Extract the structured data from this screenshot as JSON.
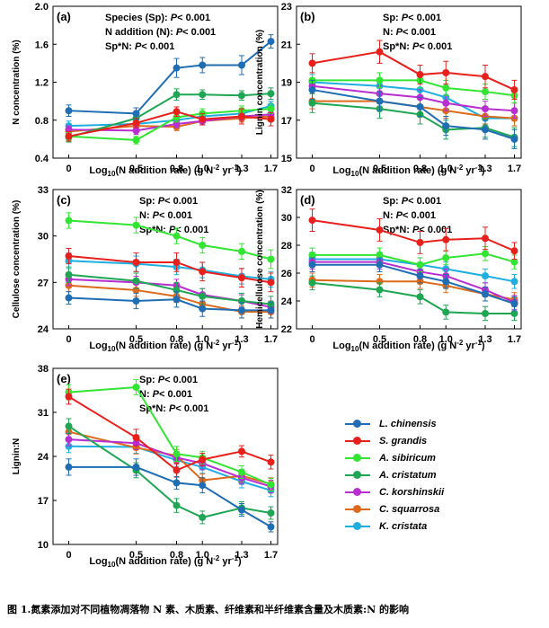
{
  "species": [
    {
      "name": "L. chinensis",
      "color": "#1f6db3"
    },
    {
      "name": "S. grandis",
      "color": "#e8201c"
    },
    {
      "name": "A. sibiricum",
      "color": "#33e533"
    },
    {
      "name": "A. cristatum",
      "color": "#1fa653"
    },
    {
      "name": "C. korshinskii",
      "color": "#b82ed0"
    },
    {
      "name": "C. squarrosa",
      "color": "#dc6a1a"
    },
    {
      "name": "K. cristata",
      "color": "#1faee0"
    }
  ],
  "caption": "图 1.氮素添加对不同植物凋落物 N 素、木质素、纤维素和半纤维素含量及木质素:N 的影响",
  "chart_data": [
    {
      "type": "line",
      "panel": "(a)",
      "ylabel": "N concentration (%)",
      "xlabel": "Log10(N addition rate) (g N-2 yr-1)",
      "x": [
        0,
        0.5,
        0.8,
        1.0,
        1.3,
        1.7
      ],
      "xticks": [
        "0",
        "0.5",
        "0.8",
        "1.0",
        "1.3",
        "1.7"
      ],
      "ylim": [
        0.4,
        2.0
      ],
      "yticks": [
        "0.4",
        "0.8",
        "1.2",
        "1.6",
        "2.0"
      ],
      "annotations": [
        "Species (Sp): P< 0.001",
        "N addition (N): P< 0.001",
        "Sp*N: P< 0.001"
      ],
      "series": [
        {
          "name": "L. chinensis",
          "values": [
            0.9,
            0.87,
            1.35,
            1.38,
            1.38,
            1.63
          ],
          "err": [
            0.06,
            0.06,
            0.1,
            0.08,
            0.1,
            0.07
          ]
        },
        {
          "name": "S. grandis",
          "values": [
            0.63,
            0.77,
            0.89,
            0.81,
            0.84,
            0.81
          ],
          "err": [
            0.05,
            0.05,
            0.05,
            0.06,
            0.08,
            0.07
          ]
        },
        {
          "name": "A. sibiricum",
          "values": [
            0.63,
            0.59,
            0.83,
            0.87,
            0.9,
            0.92
          ],
          "err": [
            0.04,
            0.04,
            0.05,
            0.05,
            0.05,
            0.05
          ]
        },
        {
          "name": "A. cristatum",
          "values": [
            0.62,
            0.82,
            1.07,
            1.07,
            1.06,
            1.08
          ],
          "err": [
            0.05,
            0.05,
            0.06,
            0.05,
            0.05,
            0.06
          ]
        },
        {
          "name": "C. korshinskii",
          "values": [
            0.7,
            0.69,
            0.76,
            0.79,
            0.84,
            0.86
          ],
          "err": [
            0.04,
            0.04,
            0.04,
            0.04,
            0.04,
            0.04
          ]
        },
        {
          "name": "C. squarrosa",
          "values": [
            0.68,
            0.74,
            0.73,
            0.79,
            0.82,
            0.84
          ],
          "err": [
            0.04,
            0.04,
            0.04,
            0.04,
            0.04,
            0.04
          ]
        },
        {
          "name": "K. cristata",
          "values": [
            0.74,
            0.76,
            0.8,
            0.84,
            0.87,
            0.95
          ],
          "err": [
            0.05,
            0.05,
            0.05,
            0.05,
            0.05,
            0.05
          ]
        }
      ]
    },
    {
      "type": "line",
      "panel": "(b)",
      "ylabel": "Lignin concentration (%)",
      "xlabel": "Log10(N addition rate) (g N-2 yr-1)",
      "x": [
        0,
        0.5,
        0.8,
        1.0,
        1.3,
        1.7
      ],
      "xticks": [
        "0",
        "0.5",
        "0.8",
        "1.0",
        "1.3",
        "1.7"
      ],
      "ylim": [
        15,
        23
      ],
      "yticks": [
        "15",
        "17",
        "19",
        "21",
        "23"
      ],
      "annotations": [
        "Sp: P< 0.001",
        "N: P< 0.001",
        "Sp*N: P< 0.001"
      ],
      "series": [
        {
          "name": "L. chinensis",
          "values": [
            18.6,
            18.0,
            17.7,
            16.7,
            16.5,
            16.0
          ],
          "err": [
            0.5,
            0.5,
            0.5,
            0.5,
            0.5,
            0.5
          ]
        },
        {
          "name": "S. grandis",
          "values": [
            20.0,
            20.6,
            19.4,
            19.5,
            19.3,
            18.6
          ],
          "err": [
            0.5,
            0.6,
            0.5,
            0.6,
            0.6,
            0.5
          ]
        },
        {
          "name": "A. sibiricum",
          "values": [
            19.1,
            19.1,
            19.1,
            18.7,
            18.5,
            18.3
          ],
          "err": [
            0.4,
            0.4,
            0.4,
            0.4,
            0.4,
            0.4
          ]
        },
        {
          "name": "A. cristatum",
          "values": [
            17.9,
            17.6,
            17.3,
            16.5,
            16.6,
            16.1
          ],
          "err": [
            0.5,
            0.5,
            0.5,
            0.5,
            0.5,
            0.5
          ]
        },
        {
          "name": "C. korshinskii",
          "values": [
            18.8,
            18.4,
            18.2,
            17.9,
            17.6,
            17.5
          ],
          "err": [
            0.4,
            0.4,
            0.4,
            0.4,
            0.4,
            0.4
          ]
        },
        {
          "name": "C. squarrosa",
          "values": [
            18.0,
            18.0,
            17.7,
            17.5,
            17.2,
            17.1
          ],
          "err": [
            0.4,
            0.4,
            0.4,
            0.4,
            0.4,
            0.4
          ]
        },
        {
          "name": "K. cristata",
          "values": [
            19.0,
            18.8,
            18.6,
            18.2,
            17.1,
            17.1
          ],
          "err": [
            0.4,
            0.4,
            0.4,
            0.4,
            0.4,
            0.4
          ]
        }
      ]
    },
    {
      "type": "line",
      "panel": "(c)",
      "ylabel": "Cellulose concentration (%)",
      "xlabel": "Log10(N addition rate) (g N-2 yr-1)",
      "x": [
        0,
        0.5,
        0.8,
        1.0,
        1.3,
        1.7
      ],
      "xticks": [
        "0",
        "0.5",
        "0.8",
        "1.0",
        "1.3",
        "1.7"
      ],
      "ylim": [
        24,
        33
      ],
      "yticks": [
        "24",
        "27",
        "30",
        "33"
      ],
      "annotations": [
        "Sp: P< 0.001",
        "N: P< 0.001",
        "Sp*N: P< 0.001"
      ],
      "series": [
        {
          "name": "L. chinensis",
          "values": [
            26.0,
            25.8,
            25.9,
            25.3,
            25.2,
            25.2
          ],
          "err": [
            0.4,
            0.5,
            0.5,
            0.5,
            0.5,
            0.5
          ]
        },
        {
          "name": "S. grandis",
          "values": [
            28.7,
            28.3,
            28.3,
            27.7,
            27.3,
            27.0
          ],
          "err": [
            0.5,
            0.6,
            0.6,
            0.6,
            0.6,
            0.6
          ]
        },
        {
          "name": "A. sibiricum",
          "values": [
            31.0,
            30.7,
            30.0,
            29.4,
            29.0,
            28.5
          ],
          "err": [
            0.5,
            0.5,
            0.5,
            0.5,
            0.5,
            0.6
          ]
        },
        {
          "name": "A. cristatum",
          "values": [
            27.5,
            27.1,
            26.5,
            26.1,
            25.8,
            25.6
          ],
          "err": [
            0.5,
            0.5,
            0.5,
            0.5,
            0.5,
            0.5
          ]
        },
        {
          "name": "C. korshinskii",
          "values": [
            27.2,
            27.0,
            26.8,
            26.2,
            25.8,
            25.4
          ],
          "err": [
            0.4,
            0.4,
            0.4,
            0.4,
            0.4,
            0.4
          ]
        },
        {
          "name": "C. squarrosa",
          "values": [
            26.8,
            26.5,
            26.1,
            25.6,
            25.1,
            25.1
          ],
          "err": [
            0.4,
            0.4,
            0.4,
            0.4,
            0.4,
            0.4
          ]
        },
        {
          "name": "K. cristata",
          "values": [
            28.4,
            28.2,
            28.0,
            27.8,
            27.4,
            27.2
          ],
          "err": [
            0.5,
            0.5,
            0.5,
            0.5,
            0.5,
            0.5
          ]
        }
      ]
    },
    {
      "type": "line",
      "panel": "(d)",
      "ylabel": "Hemicellulose concentration (%)",
      "xlabel": "Log10(N addition rate) (g N-2 yr-1)",
      "x": [
        0,
        0.5,
        0.8,
        1.0,
        1.3,
        1.7
      ],
      "xticks": [
        "0",
        "0.5",
        "0.8",
        "1.0",
        "1.3",
        "1.7"
      ],
      "ylim": [
        22,
        32
      ],
      "yticks": [
        "22",
        "24",
        "26",
        "28",
        "30",
        "32"
      ],
      "annotations": [
        "Sp: P< 0.001",
        "N: P< 0.001",
        "Sp*N: P< 0.001"
      ],
      "series": [
        {
          "name": "L. chinensis",
          "values": [
            26.6,
            26.6,
            25.8,
            25.4,
            24.5,
            23.8
          ],
          "err": [
            0.5,
            0.5,
            0.5,
            0.5,
            0.5,
            0.5
          ]
        },
        {
          "name": "S. grandis",
          "values": [
            29.8,
            29.1,
            28.2,
            28.4,
            28.5,
            27.6
          ],
          "err": [
            0.8,
            0.8,
            0.8,
            0.8,
            0.8,
            0.6
          ]
        },
        {
          "name": "A. sibiricum",
          "values": [
            27.3,
            27.3,
            26.6,
            27.1,
            27.4,
            26.8
          ],
          "err": [
            0.5,
            0.5,
            0.5,
            0.5,
            0.5,
            0.5
          ]
        },
        {
          "name": "A. cristatum",
          "values": [
            25.3,
            24.8,
            24.3,
            23.2,
            23.1,
            23.1
          ],
          "err": [
            0.5,
            0.5,
            0.5,
            0.5,
            0.5,
            0.5
          ]
        },
        {
          "name": "C. korshinskii",
          "values": [
            26.8,
            26.8,
            26.1,
            25.8,
            24.8,
            23.9
          ],
          "err": [
            0.5,
            0.5,
            0.5,
            0.5,
            0.5,
            0.5
          ]
        },
        {
          "name": "C. squarrosa",
          "values": [
            25.5,
            25.4,
            25.4,
            25.1,
            24.5,
            24.1
          ],
          "err": [
            0.5,
            0.5,
            0.5,
            0.5,
            0.5,
            0.5
          ]
        },
        {
          "name": "K. cristata",
          "values": [
            27.0,
            27.0,
            26.6,
            26.3,
            25.8,
            25.4
          ],
          "err": [
            0.5,
            0.5,
            0.5,
            0.5,
            0.5,
            0.5
          ]
        }
      ]
    },
    {
      "type": "line",
      "panel": "(e)",
      "ylabel": "Lignin:N",
      "xlabel": "Log10(N addition rate) (g N-2 yr-1)",
      "x": [
        0,
        0.5,
        0.8,
        1.0,
        1.3,
        1.7
      ],
      "xticks": [
        "0",
        "0.5",
        "0.8",
        "1.0",
        "1.3",
        "1.7"
      ],
      "ylim": [
        10,
        38
      ],
      "yticks": [
        "10",
        "17",
        "24",
        "31",
        "38"
      ],
      "annotations": [
        "Sp: P< 0.001",
        "N: P< 0.001",
        "Sp*N: P< 0.001"
      ],
      "series": [
        {
          "name": "L. chinensis",
          "values": [
            22.3,
            22.3,
            19.8,
            19.4,
            15.5,
            12.8
          ],
          "err": [
            1.3,
            1.3,
            1.0,
            1.2,
            1.0,
            0.8
          ]
        },
        {
          "name": "S. grandis",
          "values": [
            33.5,
            27.0,
            21.8,
            23.5,
            24.8,
            23.1
          ],
          "err": [
            1.2,
            1.3,
            1.1,
            1.0,
            0.9,
            1.1
          ]
        },
        {
          "name": "A. sibiricum",
          "values": [
            34.2,
            35.0,
            24.4,
            23.8,
            21.5,
            19.5
          ],
          "err": [
            1.2,
            1.2,
            1.2,
            1.0,
            1.0,
            1.0
          ]
        },
        {
          "name": "A. cristatum",
          "values": [
            28.8,
            21.8,
            16.2,
            14.3,
            15.8,
            15.0
          ],
          "err": [
            1.2,
            1.2,
            1.1,
            1.0,
            1.0,
            1.0
          ]
        },
        {
          "name": "C. korshinskii",
          "values": [
            26.7,
            26.1,
            23.8,
            22.9,
            20.6,
            19.2
          ],
          "err": [
            1.0,
            1.0,
            1.0,
            1.0,
            1.0,
            1.0
          ]
        },
        {
          "name": "C. squarrosa",
          "values": [
            27.9,
            25.4,
            24.1,
            20.2,
            20.9,
            19.6
          ],
          "err": [
            1.0,
            1.0,
            1.0,
            1.0,
            1.0,
            1.0
          ]
        },
        {
          "name": "K. cristata",
          "values": [
            25.6,
            25.5,
            23.4,
            22.3,
            20.0,
            18.6
          ],
          "err": [
            1.0,
            1.0,
            1.0,
            1.0,
            1.0,
            1.0
          ]
        }
      ]
    }
  ]
}
